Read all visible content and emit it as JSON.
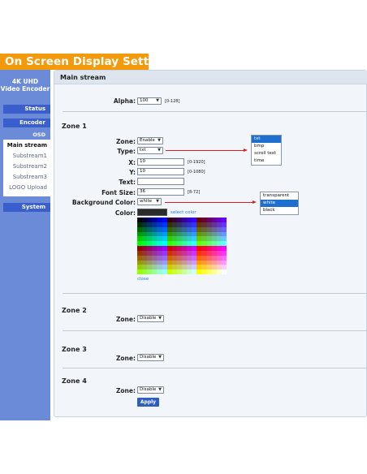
{
  "banner": {
    "title": "On Screen Display Setting"
  },
  "sidebar": {
    "brand_line1": "4K UHD",
    "brand_line2": "Video Encoder",
    "status": "Status",
    "encoder": "Encoder",
    "osd": "OSD",
    "submenu": [
      "Main stream",
      "Substream1",
      "Substream2",
      "Substream3",
      "LOGO Upload"
    ],
    "system": "System"
  },
  "panel": {
    "title": "Main stream"
  },
  "alpha": {
    "label": "Alpha:",
    "value": "100",
    "range": "[0-128]"
  },
  "zone1": {
    "title": "Zone 1",
    "zone_label": "Zone:",
    "zone_value": "Enable",
    "type_label": "Type:",
    "type_value": "txt",
    "x_label": "X:",
    "x_value": "10",
    "x_range": "[0-1920]",
    "y_label": "Y:",
    "y_value": "10",
    "y_range": "[0-1080]",
    "text_label": "Text:",
    "text_value": "",
    "fontsize_label": "Font Size:",
    "fontsize_value": "36",
    "fontsize_range": "[8-72]",
    "bgcolor_label": "Background Color:",
    "bgcolor_value": "white",
    "color_label": "Color:",
    "color_value": "#2b2b2b",
    "select_color": "select color",
    "close": "close"
  },
  "type_options": [
    "txt",
    "bmp",
    "scroll text",
    "time"
  ],
  "type_selected_index": 0,
  "bg_options": [
    "transparent",
    "white",
    "black"
  ],
  "bg_selected_index": 1,
  "zone2": {
    "title": "Zone 2",
    "zone_label": "Zone:",
    "zone_value": "Disable"
  },
  "zone3": {
    "title": "Zone 3",
    "zone_label": "Zone:",
    "zone_value": "Disable"
  },
  "zone4": {
    "title": "Zone 4",
    "zone_label": "Zone:",
    "zone_value": "Disable"
  },
  "apply": "Apply",
  "colors": {
    "banner": "#f39a0c",
    "sidebar": "#6b8bd8",
    "nav_button": "#3a5fcd",
    "panel_bg": "#f2f6fb",
    "link": "#1e7fd0",
    "arrow": "#d62222",
    "selected": "#1f6fd0"
  },
  "palette": [
    [
      "#000000",
      "#000033",
      "#000066",
      "#000099",
      "#0000cc",
      "#0000ff",
      "#330000",
      "#330033",
      "#330066",
      "#330099",
      "#3300cc",
      "#3300ff",
      "#660000",
      "#660033",
      "#660066",
      "#660099",
      "#6600cc",
      "#6600ff"
    ],
    [
      "#003300",
      "#003333",
      "#003366",
      "#003399",
      "#0033cc",
      "#0033ff",
      "#333300",
      "#333333",
      "#333366",
      "#333399",
      "#3333cc",
      "#3333ff",
      "#663300",
      "#663333",
      "#663366",
      "#663399",
      "#6633cc",
      "#6633ff"
    ],
    [
      "#006600",
      "#006633",
      "#006666",
      "#006699",
      "#0066cc",
      "#0066ff",
      "#336600",
      "#336633",
      "#336666",
      "#336699",
      "#3366cc",
      "#3366ff",
      "#666600",
      "#666633",
      "#666666",
      "#666699",
      "#6666cc",
      "#6666ff"
    ],
    [
      "#009900",
      "#009933",
      "#009966",
      "#009999",
      "#0099cc",
      "#0099ff",
      "#339900",
      "#339933",
      "#339966",
      "#339999",
      "#3399cc",
      "#3399ff",
      "#669900",
      "#669933",
      "#669966",
      "#669999",
      "#6699cc",
      "#6699ff"
    ],
    [
      "#00cc00",
      "#00cc33",
      "#00cc66",
      "#00cc99",
      "#00cccc",
      "#00ccff",
      "#33cc00",
      "#33cc33",
      "#33cc66",
      "#33cc99",
      "#33cccc",
      "#33ccff",
      "#66cc00",
      "#66cc33",
      "#66cc66",
      "#66cc99",
      "#66cccc",
      "#66ccff"
    ],
    [
      "#00ff00",
      "#00ff33",
      "#00ff66",
      "#00ff99",
      "#00ffcc",
      "#00ffff",
      "#33ff00",
      "#33ff33",
      "#33ff66",
      "#33ff99",
      "#33ffcc",
      "#33ffff",
      "#66ff00",
      "#66ff33",
      "#66ff66",
      "#66ff99",
      "#66ffcc",
      "#66ffff"
    ],
    [
      "#990000",
      "#990033",
      "#990066",
      "#990099",
      "#9900cc",
      "#9900ff",
      "#cc0000",
      "#cc0033",
      "#cc0066",
      "#cc0099",
      "#cc00cc",
      "#cc00ff",
      "#ff0000",
      "#ff0033",
      "#ff0066",
      "#ff0099",
      "#ff00cc",
      "#ff00ff"
    ],
    [
      "#993300",
      "#993333",
      "#993366",
      "#993399",
      "#9933cc",
      "#9933ff",
      "#cc3300",
      "#cc3333",
      "#cc3366",
      "#cc3399",
      "#cc33cc",
      "#cc33ff",
      "#ff3300",
      "#ff3333",
      "#ff3366",
      "#ff3399",
      "#ff33cc",
      "#ff33ff"
    ],
    [
      "#996600",
      "#996633",
      "#996666",
      "#996699",
      "#9966cc",
      "#9966ff",
      "#cc6600",
      "#cc6633",
      "#cc6666",
      "#cc6699",
      "#cc66cc",
      "#cc66ff",
      "#ff6600",
      "#ff6633",
      "#ff6666",
      "#ff6699",
      "#ff66cc",
      "#ff66ff"
    ],
    [
      "#999900",
      "#999933",
      "#999966",
      "#999999",
      "#9999cc",
      "#9999ff",
      "#cc9900",
      "#cc9933",
      "#cc9966",
      "#cc9999",
      "#cc99cc",
      "#cc99ff",
      "#ff9900",
      "#ff9933",
      "#ff9966",
      "#ff9999",
      "#ff99cc",
      "#ff99ff"
    ],
    [
      "#99cc00",
      "#99cc33",
      "#99cc66",
      "#99cc99",
      "#99cccc",
      "#99ccff",
      "#cccc00",
      "#cccc33",
      "#cccc66",
      "#cccc99",
      "#cccccc",
      "#ccccff",
      "#ffcc00",
      "#ffcc33",
      "#ffcc66",
      "#ffcc99",
      "#ffcccc",
      "#ffccff"
    ],
    [
      "#99ff00",
      "#99ff33",
      "#99ff66",
      "#99ff99",
      "#99ffcc",
      "#99ffff",
      "#ccff00",
      "#ccff33",
      "#ccff66",
      "#ccff99",
      "#ccffcc",
      "#ccffff",
      "#ffff00",
      "#ffff33",
      "#ffff66",
      "#ffff99",
      "#ffffcc",
      "#ffffff"
    ]
  ]
}
